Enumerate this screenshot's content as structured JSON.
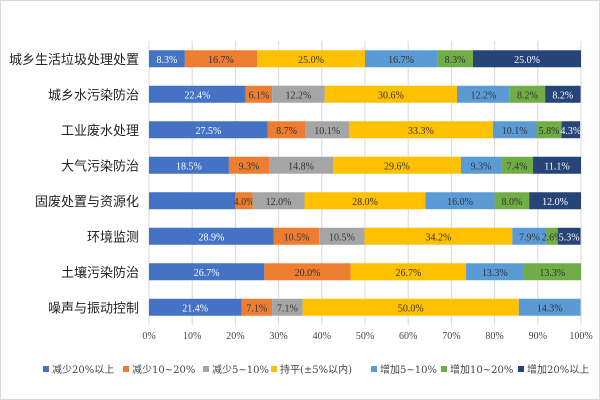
{
  "chart_data": {
    "type": "bar",
    "orientation": "horizontal",
    "stacked": true,
    "percent": true,
    "title": "",
    "xlabel": "",
    "ylabel": "",
    "xlim": [
      0,
      100
    ],
    "x_ticks": [
      "0%",
      "10%",
      "20%",
      "30%",
      "40%",
      "50%",
      "60%",
      "70%",
      "80%",
      "90%",
      "100%"
    ],
    "grid": true,
    "legend_position": "bottom",
    "categories": [
      "城乡生活垃圾处理处置",
      "城乡水污染防治",
      "工业废水处理",
      "大气污染防治",
      "固废处置与资源化",
      "环境监测",
      "土壤污染防治",
      "噪声与振动控制"
    ],
    "series": [
      {
        "name": "减少20%以上",
        "color": "#4472c4",
        "label_color": "#ffffff",
        "values": [
          8.3,
          22.4,
          27.5,
          18.5,
          20.0,
          28.9,
          26.7,
          21.4
        ],
        "labels": [
          "8.3%",
          "22.4%",
          "27.5%",
          "18.5%",
          null,
          "28.9%",
          "26.7%",
          "21.4%"
        ]
      },
      {
        "name": "减少10~20%",
        "color": "#ed7d31",
        "label_color": "#333333",
        "values": [
          16.7,
          6.1,
          8.7,
          9.3,
          4.0,
          10.5,
          20.0,
          7.1
        ],
        "labels": [
          "16.7%",
          "6.1%",
          "8.7%",
          "9.3%",
          "4.0%",
          "10.5%",
          "20.0%",
          "7.1%"
        ]
      },
      {
        "name": "减少5~10%",
        "color": "#a5a5a5",
        "label_color": "#333333",
        "values": [
          0,
          12.2,
          10.1,
          14.8,
          12.0,
          10.5,
          0,
          7.1
        ],
        "labels": [
          null,
          "12.2%",
          "10.1%",
          "14.8%",
          "12.0%",
          "10.5%",
          null,
          "7.1%"
        ]
      },
      {
        "name": "持平(±5%以内)",
        "color": "#ffc000",
        "label_color": "#333333",
        "values": [
          25.0,
          30.6,
          33.3,
          29.6,
          28.0,
          34.2,
          26.7,
          50.0
        ],
        "labels": [
          "25.0%",
          "30.6%",
          "33.3%",
          "29.6%",
          "28.0%",
          "34.2%",
          "26.7%",
          "50.0%"
        ]
      },
      {
        "name": "增加5~10%",
        "color": "#5b9bd5",
        "label_color": "#333333",
        "values": [
          16.7,
          12.2,
          10.1,
          9.3,
          16.0,
          7.9,
          13.3,
          14.3
        ],
        "labels": [
          "16.7%",
          "12.2%",
          "10.1%",
          "9.3%",
          "16.0%",
          "7.9%",
          "13.3%",
          "14.3%"
        ]
      },
      {
        "name": "增加10~20%",
        "color": "#70ad47",
        "label_color": "#333333",
        "values": [
          8.3,
          8.2,
          5.8,
          7.4,
          8.0,
          2.6,
          13.3,
          0
        ],
        "labels": [
          "8.3%",
          "8.2%",
          "5.8%",
          "7.4%",
          "8.0%",
          "2.6%",
          "13.3%",
          null
        ]
      },
      {
        "name": "增加20%以上",
        "color": "#264478",
        "label_color": "#ffffff",
        "values": [
          25.0,
          8.2,
          4.3,
          11.1,
          12.0,
          5.3,
          0,
          0
        ],
        "labels": [
          "25.0%",
          "8.2%",
          "4.3%",
          "11.1%",
          "12.0%",
          "5.3%",
          null,
          null
        ]
      }
    ]
  }
}
